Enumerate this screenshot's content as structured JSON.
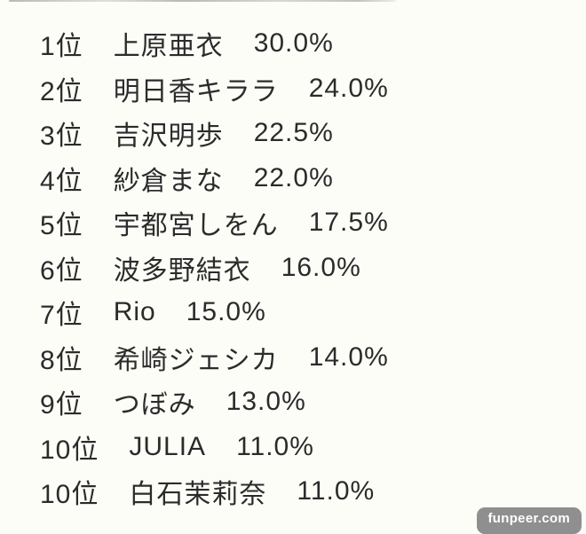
{
  "ranking": {
    "items": [
      {
        "rank": "1位",
        "name": "上原亜衣",
        "pct": "30.0%"
      },
      {
        "rank": "2位",
        "name": "明日香キララ",
        "pct": "24.0%"
      },
      {
        "rank": "3位",
        "name": "吉沢明歩",
        "pct": "22.5%"
      },
      {
        "rank": "4位",
        "name": "紗倉まな",
        "pct": "22.0%"
      },
      {
        "rank": "5位",
        "name": "宇都宮しをん",
        "pct": "17.5%"
      },
      {
        "rank": "6位",
        "name": "波多野結衣",
        "pct": "16.0%"
      },
      {
        "rank": "7位",
        "name": "Rio",
        "pct": "15.0%"
      },
      {
        "rank": "8位",
        "name": "希崎ジェシカ",
        "pct": "14.0%"
      },
      {
        "rank": "9位",
        "name": "つぼみ",
        "pct": "13.0%"
      },
      {
        "rank": "10位",
        "name": "JULIA",
        "pct": "11.0%"
      },
      {
        "rank": "10位",
        "name": "白石茉莉奈",
        "pct": "11.0%"
      }
    ]
  },
  "watermark": {
    "label": "funpeer.com"
  },
  "colors": {
    "text": "#2b2b2b",
    "background": "#fdfdf8",
    "badge_background": "#8f8f8f",
    "badge_text": "#ffffff"
  }
}
